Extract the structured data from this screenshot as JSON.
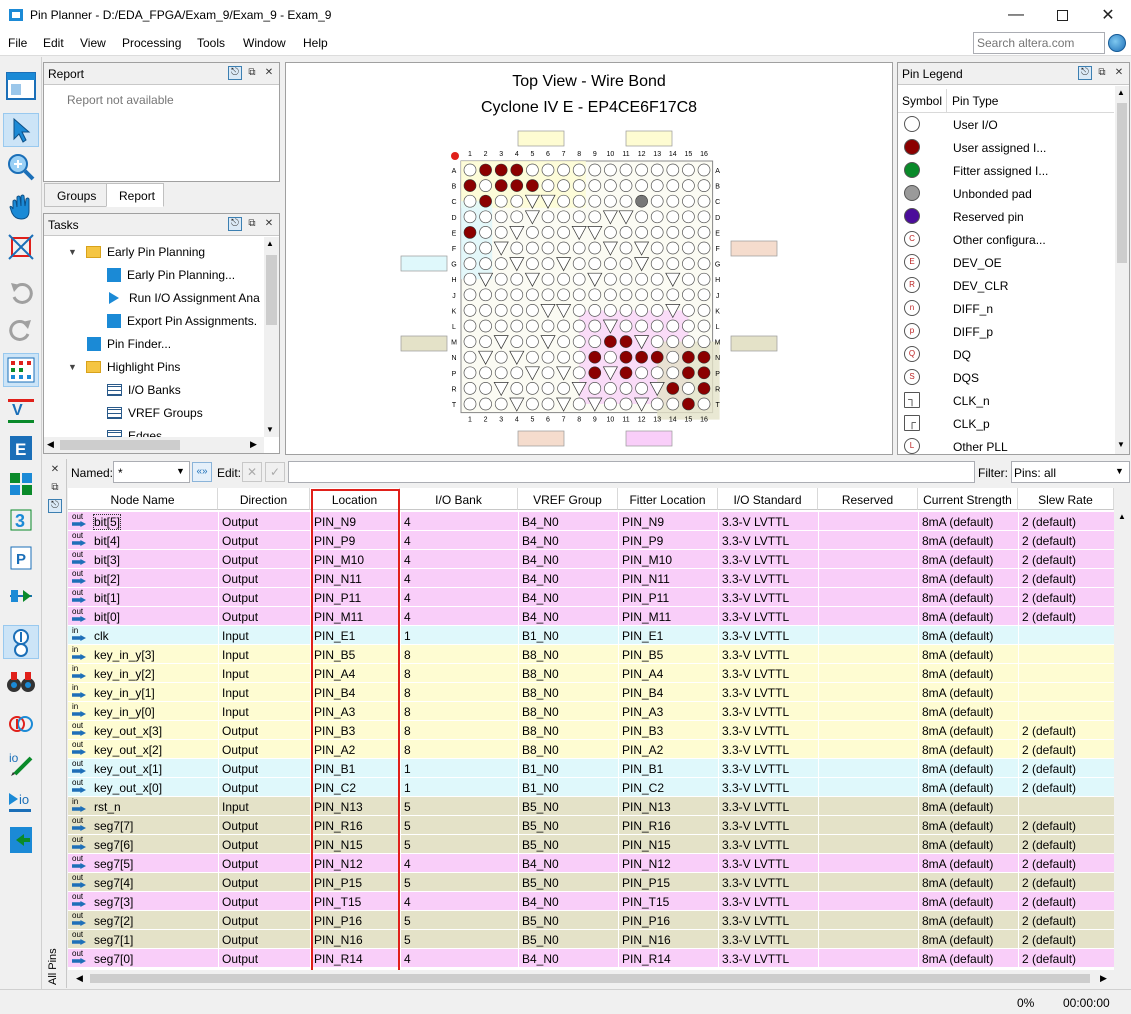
{
  "window": {
    "title": "Pin Planner - D:/EDA_FPGA/Exam_9/Exam_9 - Exam_9"
  },
  "menu": [
    "File",
    "Edit",
    "View",
    "Processing",
    "Tools",
    "Window",
    "Help"
  ],
  "search": {
    "placeholder": "Search altera.com"
  },
  "report": {
    "title": "Report",
    "body": "Report not available",
    "tabs": [
      "Groups",
      "Report"
    ]
  },
  "tasks": {
    "title": "Tasks",
    "items": [
      {
        "label": "Early Pin Planning",
        "type": "folder",
        "level": 0
      },
      {
        "label": "Early Pin Planning...",
        "type": "task",
        "level": 1
      },
      {
        "label": "Run I/O Assignment Ana",
        "type": "play",
        "level": 1
      },
      {
        "label": "Export Pin Assignments.",
        "type": "task",
        "level": 1
      },
      {
        "label": "Pin Finder...",
        "type": "task",
        "level": 0
      },
      {
        "label": "Highlight Pins",
        "type": "folder",
        "level": 0
      },
      {
        "label": "I/O Banks",
        "type": "grid",
        "level": 1
      },
      {
        "label": "VREF Groups",
        "type": "grid",
        "level": 1
      },
      {
        "label": "Edges",
        "type": "grid",
        "level": 1
      }
    ]
  },
  "package": {
    "title": "Top View - Wire Bond",
    "device": "Cyclone IV E - EP4CE6F17C8",
    "cols": [
      "1",
      "2",
      "3",
      "4",
      "5",
      "6",
      "7",
      "8",
      "9",
      "10",
      "11",
      "12",
      "13",
      "14",
      "15",
      "16"
    ],
    "rows": [
      "A",
      "B",
      "C",
      "D",
      "E",
      "F",
      "G",
      "H",
      "J",
      "K",
      "L",
      "M",
      "N",
      "P",
      "R",
      "T"
    ]
  },
  "legend": {
    "title": "Pin Legend",
    "col_symbol": "Symbol",
    "col_type": "Pin Type",
    "items": [
      {
        "label": "User I/O",
        "fill": "#ffffff",
        "mark": ""
      },
      {
        "label": "User assigned I...",
        "fill": "#8b0000",
        "mark": ""
      },
      {
        "label": "Fitter assigned I...",
        "fill": "#0a8a2a",
        "mark": ""
      },
      {
        "label": "Unbonded pad",
        "fill": "#9a9a9a",
        "mark": ""
      },
      {
        "label": "Reserved pin",
        "fill": "#4b0d9a",
        "mark": ""
      },
      {
        "label": "Other configura...",
        "fill": "#ffffff",
        "mark": "C"
      },
      {
        "label": "DEV_OE",
        "fill": "#ffffff",
        "mark": "E"
      },
      {
        "label": "DEV_CLR",
        "fill": "#ffffff",
        "mark": "R"
      },
      {
        "label": "DIFF_n",
        "fill": "#ffffff",
        "mark": "n"
      },
      {
        "label": "DIFF_p",
        "fill": "#ffffff",
        "mark": "p"
      },
      {
        "label": "DQ",
        "fill": "#ffffff",
        "mark": "Q"
      },
      {
        "label": "DQS",
        "fill": "#ffffff",
        "mark": "S"
      },
      {
        "label": "CLK_n",
        "fill": "#ffffff",
        "mark": "┐"
      },
      {
        "label": "CLK_p",
        "fill": "#ffffff",
        "mark": "┌"
      },
      {
        "label": "Other PLL",
        "fill": "#ffffff",
        "mark": "L"
      }
    ]
  },
  "filter": {
    "named_label": "Named:",
    "named_value": "*",
    "edit_label": "Edit:",
    "filter_label": "Filter:",
    "filter_value": "Pins: all"
  },
  "table": {
    "columns": [
      "Node Name",
      "Direction",
      "Location",
      "I/O Bank",
      "VREF Group",
      "Fitter Location",
      "I/O Standard",
      "Reserved",
      "Current Strength",
      "Slew Rate"
    ],
    "rows": [
      {
        "name": "bit[5]",
        "dir": "Output",
        "loc": "PIN_N9",
        "bank": "4",
        "vref": "B4_N0",
        "fit": "PIN_N9",
        "std": "3.3-V LVTTL",
        "res": "",
        "cur": "8mA (default)",
        "slew": "2 (default)",
        "color": "#f9cef9"
      },
      {
        "name": "bit[4]",
        "dir": "Output",
        "loc": "PIN_P9",
        "bank": "4",
        "vref": "B4_N0",
        "fit": "PIN_P9",
        "std": "3.3-V LVTTL",
        "res": "",
        "cur": "8mA (default)",
        "slew": "2 (default)",
        "color": "#f9cef9"
      },
      {
        "name": "bit[3]",
        "dir": "Output",
        "loc": "PIN_M10",
        "bank": "4",
        "vref": "B4_N0",
        "fit": "PIN_M10",
        "std": "3.3-V LVTTL",
        "res": "",
        "cur": "8mA (default)",
        "slew": "2 (default)",
        "color": "#f9cef9"
      },
      {
        "name": "bit[2]",
        "dir": "Output",
        "loc": "PIN_N11",
        "bank": "4",
        "vref": "B4_N0",
        "fit": "PIN_N11",
        "std": "3.3-V LVTTL",
        "res": "",
        "cur": "8mA (default)",
        "slew": "2 (default)",
        "color": "#f9cef9"
      },
      {
        "name": "bit[1]",
        "dir": "Output",
        "loc": "PIN_P11",
        "bank": "4",
        "vref": "B4_N0",
        "fit": "PIN_P11",
        "std": "3.3-V LVTTL",
        "res": "",
        "cur": "8mA (default)",
        "slew": "2 (default)",
        "color": "#f9cef9"
      },
      {
        "name": "bit[0]",
        "dir": "Output",
        "loc": "PIN_M11",
        "bank": "4",
        "vref": "B4_N0",
        "fit": "PIN_M11",
        "std": "3.3-V LVTTL",
        "res": "",
        "cur": "8mA (default)",
        "slew": "2 (default)",
        "color": "#f9cef9"
      },
      {
        "name": "clk",
        "dir": "Input",
        "loc": "PIN_E1",
        "bank": "1",
        "vref": "B1_N0",
        "fit": "PIN_E1",
        "std": "3.3-V LVTTL",
        "res": "",
        "cur": "8mA (default)",
        "slew": "",
        "color": "#dff8fb"
      },
      {
        "name": "key_in_y[3]",
        "dir": "Input",
        "loc": "PIN_B5",
        "bank": "8",
        "vref": "B8_N0",
        "fit": "PIN_B5",
        "std": "3.3-V LVTTL",
        "res": "",
        "cur": "8mA (default)",
        "slew": "",
        "color": "#fefcd2"
      },
      {
        "name": "key_in_y[2]",
        "dir": "Input",
        "loc": "PIN_A4",
        "bank": "8",
        "vref": "B8_N0",
        "fit": "PIN_A4",
        "std": "3.3-V LVTTL",
        "res": "",
        "cur": "8mA (default)",
        "slew": "",
        "color": "#fefcd2"
      },
      {
        "name": "key_in_y[1]",
        "dir": "Input",
        "loc": "PIN_B4",
        "bank": "8",
        "vref": "B8_N0",
        "fit": "PIN_B4",
        "std": "3.3-V LVTTL",
        "res": "",
        "cur": "8mA (default)",
        "slew": "",
        "color": "#fefcd2"
      },
      {
        "name": "key_in_y[0]",
        "dir": "Input",
        "loc": "PIN_A3",
        "bank": "8",
        "vref": "B8_N0",
        "fit": "PIN_A3",
        "std": "3.3-V LVTTL",
        "res": "",
        "cur": "8mA (default)",
        "slew": "",
        "color": "#fefcd2"
      },
      {
        "name": "key_out_x[3]",
        "dir": "Output",
        "loc": "PIN_B3",
        "bank": "8",
        "vref": "B8_N0",
        "fit": "PIN_B3",
        "std": "3.3-V LVTTL",
        "res": "",
        "cur": "8mA (default)",
        "slew": "2 (default)",
        "color": "#fefcd2"
      },
      {
        "name": "key_out_x[2]",
        "dir": "Output",
        "loc": "PIN_A2",
        "bank": "8",
        "vref": "B8_N0",
        "fit": "PIN_A2",
        "std": "3.3-V LVTTL",
        "res": "",
        "cur": "8mA (default)",
        "slew": "2 (default)",
        "color": "#fefcd2"
      },
      {
        "name": "key_out_x[1]",
        "dir": "Output",
        "loc": "PIN_B1",
        "bank": "1",
        "vref": "B1_N0",
        "fit": "PIN_B1",
        "std": "3.3-V LVTTL",
        "res": "",
        "cur": "8mA (default)",
        "slew": "2 (default)",
        "color": "#dff8fb"
      },
      {
        "name": "key_out_x[0]",
        "dir": "Output",
        "loc": "PIN_C2",
        "bank": "1",
        "vref": "B1_N0",
        "fit": "PIN_C2",
        "std": "3.3-V LVTTL",
        "res": "",
        "cur": "8mA (default)",
        "slew": "2 (default)",
        "color": "#dff8fb"
      },
      {
        "name": "rst_n",
        "dir": "Input",
        "loc": "PIN_N13",
        "bank": "5",
        "vref": "B5_N0",
        "fit": "PIN_N13",
        "std": "3.3-V LVTTL",
        "res": "",
        "cur": "8mA (default)",
        "slew": "",
        "color": "#e4e2c8"
      },
      {
        "name": "seg7[7]",
        "dir": "Output",
        "loc": "PIN_R16",
        "bank": "5",
        "vref": "B5_N0",
        "fit": "PIN_R16",
        "std": "3.3-V LVTTL",
        "res": "",
        "cur": "8mA (default)",
        "slew": "2 (default)",
        "color": "#e4e2c8"
      },
      {
        "name": "seg7[6]",
        "dir": "Output",
        "loc": "PIN_N15",
        "bank": "5",
        "vref": "B5_N0",
        "fit": "PIN_N15",
        "std": "3.3-V LVTTL",
        "res": "",
        "cur": "8mA (default)",
        "slew": "2 (default)",
        "color": "#e4e2c8"
      },
      {
        "name": "seg7[5]",
        "dir": "Output",
        "loc": "PIN_N12",
        "bank": "4",
        "vref": "B4_N0",
        "fit": "PIN_N12",
        "std": "3.3-V LVTTL",
        "res": "",
        "cur": "8mA (default)",
        "slew": "2 (default)",
        "color": "#f9cef9"
      },
      {
        "name": "seg7[4]",
        "dir": "Output",
        "loc": "PIN_P15",
        "bank": "5",
        "vref": "B5_N0",
        "fit": "PIN_P15",
        "std": "3.3-V LVTTL",
        "res": "",
        "cur": "8mA (default)",
        "slew": "2 (default)",
        "color": "#e4e2c8"
      },
      {
        "name": "seg7[3]",
        "dir": "Output",
        "loc": "PIN_T15",
        "bank": "4",
        "vref": "B4_N0",
        "fit": "PIN_T15",
        "std": "3.3-V LVTTL",
        "res": "",
        "cur": "8mA (default)",
        "slew": "2 (default)",
        "color": "#f9cef9"
      },
      {
        "name": "seg7[2]",
        "dir": "Output",
        "loc": "PIN_P16",
        "bank": "5",
        "vref": "B5_N0",
        "fit": "PIN_P16",
        "std": "3.3-V LVTTL",
        "res": "",
        "cur": "8mA (default)",
        "slew": "2 (default)",
        "color": "#e4e2c8"
      },
      {
        "name": "seg7[1]",
        "dir": "Output",
        "loc": "PIN_N16",
        "bank": "5",
        "vref": "B5_N0",
        "fit": "PIN_N16",
        "std": "3.3-V LVTTL",
        "res": "",
        "cur": "8mA (default)",
        "slew": "2 (default)",
        "color": "#e4e2c8"
      },
      {
        "name": "seg7[0]",
        "dir": "Output",
        "loc": "PIN_R14",
        "bank": "4",
        "vref": "B4_N0",
        "fit": "PIN_R14",
        "std": "3.3-V LVTTL",
        "res": "",
        "cur": "8mA (default)",
        "slew": "2 (default)",
        "color": "#f9cef9"
      }
    ]
  },
  "side_tab": "All Pins",
  "status": {
    "progress": "0%",
    "time": "00:00:00"
  },
  "colors": {
    "highlight_box": "#e0201a",
    "accent": "#1e6fb8"
  }
}
